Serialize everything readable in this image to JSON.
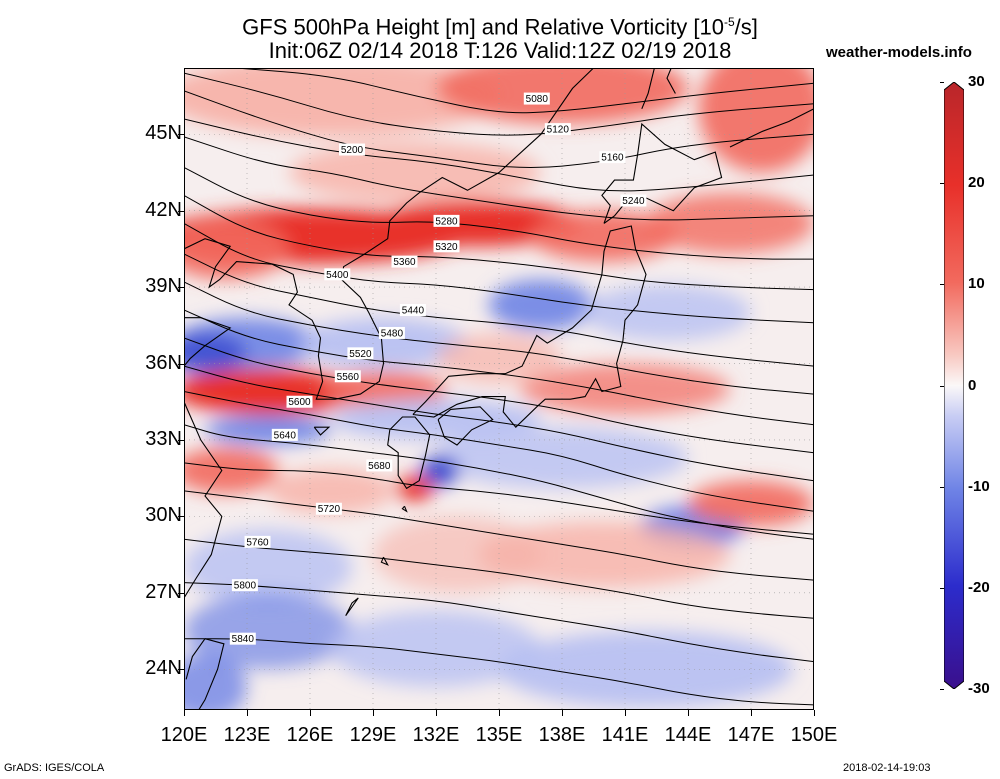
{
  "title": {
    "line1": "GFS 500hPa Height [m] and Relative Vorticity [10",
    "line1_sup": "-5",
    "line1_end": "/s]",
    "line2": "Init:06Z 02/14 2018 T:126 Valid:12Z 02/19 2018"
  },
  "site": "weather-models.info",
  "footer": {
    "left": "GrADS: IGES/COLA",
    "right": "2018-02-14-19:03"
  },
  "map": {
    "lat_labels": [
      "45N",
      "42N",
      "39N",
      "36N",
      "33N",
      "30N",
      "27N",
      "24N"
    ],
    "lat_values": [
      45,
      42,
      39,
      36,
      33,
      30,
      27,
      24
    ],
    "lon_labels": [
      "120E",
      "123E",
      "126E",
      "129E",
      "132E",
      "135E",
      "138E",
      "141E",
      "144E",
      "147E",
      "150E"
    ],
    "lon_values": [
      120,
      123,
      126,
      129,
      132,
      135,
      138,
      141,
      144,
      147,
      150
    ],
    "lat_range": [
      22.4,
      47.6
    ],
    "lon_range": [
      120,
      150
    ],
    "contours": [
      {
        "label": "5080",
        "points": [
          [
            122.5,
            47.6
          ],
          [
            127,
            47.3
          ],
          [
            131,
            46.5
          ],
          [
            135,
            45.8
          ],
          [
            138,
            45.9
          ],
          [
            141,
            46.2
          ],
          [
            145,
            46.6
          ],
          [
            150,
            47.0
          ]
        ],
        "label_at": [
          136.8,
          46.4
        ]
      },
      {
        "label": "5120",
        "points": [
          [
            120,
            47.4
          ],
          [
            124,
            46.6
          ],
          [
            128,
            45.6
          ],
          [
            132,
            45.1
          ],
          [
            136,
            44.9
          ],
          [
            140,
            45.3
          ],
          [
            144,
            45.8
          ],
          [
            150,
            46.2
          ]
        ],
        "label_at": [
          137.8,
          45.2
        ]
      },
      {
        "label": "5160",
        "points": [
          [
            120,
            46.7
          ],
          [
            124,
            45.5
          ],
          [
            128,
            44.5
          ],
          [
            132,
            44.1
          ],
          [
            136,
            43.6
          ],
          [
            140,
            43.9
          ],
          [
            144,
            44.6
          ],
          [
            150,
            45.0
          ]
        ],
        "label_at": [
          140.4,
          44.1
        ]
      },
      {
        "label": "5200",
        "points": [
          [
            120,
            45.6
          ],
          [
            124,
            44.8
          ],
          [
            128,
            44.2
          ],
          [
            132,
            43.9
          ],
          [
            136,
            43.3
          ],
          [
            140,
            42.7
          ],
          [
            144,
            42.9
          ],
          [
            150,
            43.4
          ]
        ],
        "label_at": [
          128.0,
          44.4
        ]
      },
      {
        "label": "5240",
        "points": [
          [
            120,
            44.9
          ],
          [
            124,
            43.8
          ],
          [
            127,
            43.5
          ],
          [
            130,
            42.9
          ],
          [
            134,
            42.4
          ],
          [
            138,
            41.9
          ],
          [
            142,
            41.6
          ],
          [
            146,
            41.7
          ],
          [
            150,
            41.8
          ]
        ],
        "label_at": [
          141.4,
          42.4
        ]
      },
      {
        "label": "5280",
        "points": [
          [
            120,
            43.7
          ],
          [
            123,
            42.4
          ],
          [
            126,
            41.8
          ],
          [
            129,
            41.5
          ],
          [
            132,
            41.6
          ],
          [
            136,
            41.2
          ],
          [
            139,
            40.7
          ],
          [
            143,
            40.3
          ],
          [
            147,
            40.1
          ],
          [
            150,
            40.1
          ]
        ],
        "label_at": [
          132.5,
          41.6
        ]
      },
      {
        "label": "5320",
        "points": [
          [
            120,
            42.6
          ],
          [
            123,
            41.2
          ],
          [
            126,
            40.6
          ],
          [
            129,
            40.2
          ],
          [
            132,
            40.2
          ],
          [
            135,
            40.0
          ],
          [
            139,
            39.6
          ],
          [
            142,
            39.2
          ],
          [
            146,
            39.0
          ],
          [
            150,
            38.9
          ]
        ],
        "label_at": [
          132.5,
          40.6
        ]
      },
      {
        "label": "5360",
        "points": [
          [
            120,
            41.5
          ],
          [
            123,
            40.1
          ],
          [
            126,
            39.6
          ],
          [
            129,
            39.2
          ],
          [
            132,
            39.1
          ],
          [
            135,
            38.8
          ],
          [
            138,
            38.4
          ],
          [
            141,
            38.1
          ],
          [
            145,
            37.8
          ],
          [
            150,
            37.6
          ]
        ],
        "label_at": [
          130.5,
          40.0
        ]
      },
      {
        "label": "5400",
        "points": [
          [
            120,
            40.3
          ],
          [
            123,
            39.1
          ],
          [
            126,
            38.6
          ],
          [
            129,
            38.1
          ],
          [
            132,
            37.8
          ],
          [
            135,
            37.6
          ],
          [
            138,
            37.3
          ],
          [
            141,
            36.8
          ],
          [
            145,
            36.3
          ],
          [
            150,
            35.9
          ]
        ],
        "label_at": [
          127.3,
          39.5
        ]
      },
      {
        "label": "5440",
        "points": [
          [
            120,
            39.2
          ],
          [
            123,
            38.0
          ],
          [
            126,
            37.5
          ],
          [
            129,
            37.1
          ],
          [
            132,
            36.8
          ],
          [
            136,
            36.5
          ],
          [
            139,
            36.1
          ],
          [
            142,
            35.6
          ],
          [
            146,
            35.1
          ],
          [
            150,
            34.8
          ]
        ],
        "label_at": [
          130.9,
          38.1
        ]
      },
      {
        "label": "5480",
        "points": [
          [
            120,
            38.1
          ],
          [
            123,
            37.0
          ],
          [
            126,
            36.5
          ],
          [
            129,
            36.1
          ],
          [
            132,
            35.9
          ],
          [
            136,
            35.5
          ],
          [
            139,
            35.1
          ],
          [
            142,
            34.6
          ],
          [
            146,
            34.0
          ],
          [
            150,
            33.6
          ]
        ],
        "label_at": [
          129.9,
          37.2
        ]
      },
      {
        "label": "5520",
        "points": [
          [
            120,
            37.0
          ],
          [
            123,
            36.1
          ],
          [
            126,
            35.6
          ],
          [
            129,
            35.2
          ],
          [
            132,
            34.9
          ],
          [
            135,
            34.6
          ],
          [
            138,
            34.2
          ],
          [
            141,
            33.6
          ],
          [
            145,
            33.0
          ],
          [
            150,
            32.5
          ]
        ],
        "label_at": [
          128.4,
          36.4
        ]
      },
      {
        "label": "5560",
        "points": [
          [
            120,
            35.9
          ],
          [
            123,
            35.2
          ],
          [
            126,
            34.8
          ],
          [
            129,
            34.4
          ],
          [
            132,
            34.0
          ],
          [
            135,
            33.7
          ],
          [
            138,
            33.3
          ],
          [
            141,
            32.7
          ],
          [
            145,
            32.0
          ],
          [
            150,
            31.4
          ]
        ],
        "label_at": [
          127.8,
          35.5
        ]
      },
      {
        "label": "5600",
        "points": [
          [
            120,
            34.9
          ],
          [
            123,
            34.4
          ],
          [
            126,
            34.0
          ],
          [
            129,
            33.5
          ],
          [
            132,
            33.2
          ],
          [
            135,
            32.8
          ],
          [
            138,
            32.4
          ],
          [
            141,
            31.6
          ],
          [
            145,
            30.8
          ],
          [
            150,
            30.2
          ]
        ],
        "label_at": [
          125.5,
          34.5
        ]
      },
      {
        "label": "5640",
        "points": [
          [
            120,
            33.6
          ],
          [
            122,
            33.1
          ],
          [
            125,
            32.9
          ],
          [
            128,
            32.6
          ],
          [
            131,
            32.3
          ],
          [
            134,
            31.9
          ],
          [
            137,
            31.4
          ],
          [
            140,
            30.7
          ],
          [
            143,
            30.0
          ],
          [
            147,
            29.4
          ],
          [
            150,
            29.1
          ]
        ],
        "label_at": [
          124.8,
          33.2
        ]
      },
      {
        "label": "5680",
        "points": [
          [
            120,
            32.1
          ],
          [
            123,
            31.8
          ],
          [
            126,
            31.8
          ],
          [
            129,
            31.5
          ],
          [
            131,
            31.2
          ],
          [
            134,
            31.0
          ],
          [
            137,
            30.7
          ],
          [
            140,
            30.3
          ],
          [
            143,
            29.9
          ],
          [
            146,
            29.6
          ],
          [
            150,
            29.3
          ]
        ],
        "label_at": [
          129.3,
          32.0
        ]
      },
      {
        "label": "5720",
        "points": [
          [
            120,
            31.0
          ],
          [
            123,
            30.7
          ],
          [
            126,
            30.4
          ],
          [
            129,
            30.1
          ],
          [
            132,
            29.7
          ],
          [
            135,
            29.3
          ],
          [
            138,
            28.9
          ],
          [
            141,
            28.5
          ],
          [
            144,
            28.0
          ],
          [
            147,
            27.7
          ],
          [
            150,
            27.5
          ]
        ],
        "label_at": [
          126.9,
          30.3
        ]
      },
      {
        "label": "5760",
        "points": [
          [
            120,
            29.1
          ],
          [
            123,
            28.8
          ],
          [
            126,
            28.6
          ],
          [
            129,
            28.4
          ],
          [
            132,
            28.1
          ],
          [
            135,
            27.8
          ],
          [
            138,
            27.4
          ],
          [
            141,
            27.0
          ],
          [
            144,
            26.5
          ],
          [
            147,
            26.2
          ],
          [
            150,
            26.0
          ]
        ],
        "label_at": [
          123.5,
          29.0
        ]
      },
      {
        "label": "5800",
        "points": [
          [
            120,
            27.4
          ],
          [
            123,
            27.3
          ],
          [
            126,
            27.1
          ],
          [
            129,
            26.9
          ],
          [
            132,
            26.7
          ],
          [
            135,
            26.3
          ],
          [
            138,
            25.9
          ],
          [
            141,
            25.5
          ],
          [
            144,
            25.0
          ],
          [
            147,
            24.6
          ],
          [
            150,
            24.3
          ]
        ],
        "label_at": [
          122.9,
          27.3
        ]
      },
      {
        "label": "5840",
        "points": [
          [
            120,
            25.2
          ],
          [
            123,
            25.2
          ],
          [
            126,
            25.0
          ],
          [
            129,
            24.9
          ],
          [
            132,
            24.6
          ],
          [
            135,
            24.3
          ],
          [
            138,
            23.9
          ],
          [
            141,
            23.5
          ],
          [
            144,
            23.0
          ],
          [
            147,
            22.7
          ],
          [
            150,
            22.6
          ]
        ],
        "label_at": [
          122.8,
          25.2
        ]
      }
    ],
    "colors": {
      "strong_red": "#e8302a",
      "mid_red": "#f26a5e",
      "light_red": "#f7b0a6",
      "white": "#f7f5f5",
      "light_blue": "#b6bff2",
      "mid_blue": "#6f84e6",
      "strong_blue": "#3d4ed0"
    }
  },
  "colorbar": {
    "labels": [
      "30",
      "20",
      "10",
      "0",
      "-10",
      "-20",
      "-30"
    ],
    "values": [
      30,
      20,
      10,
      0,
      -10,
      -20,
      -30
    ]
  }
}
